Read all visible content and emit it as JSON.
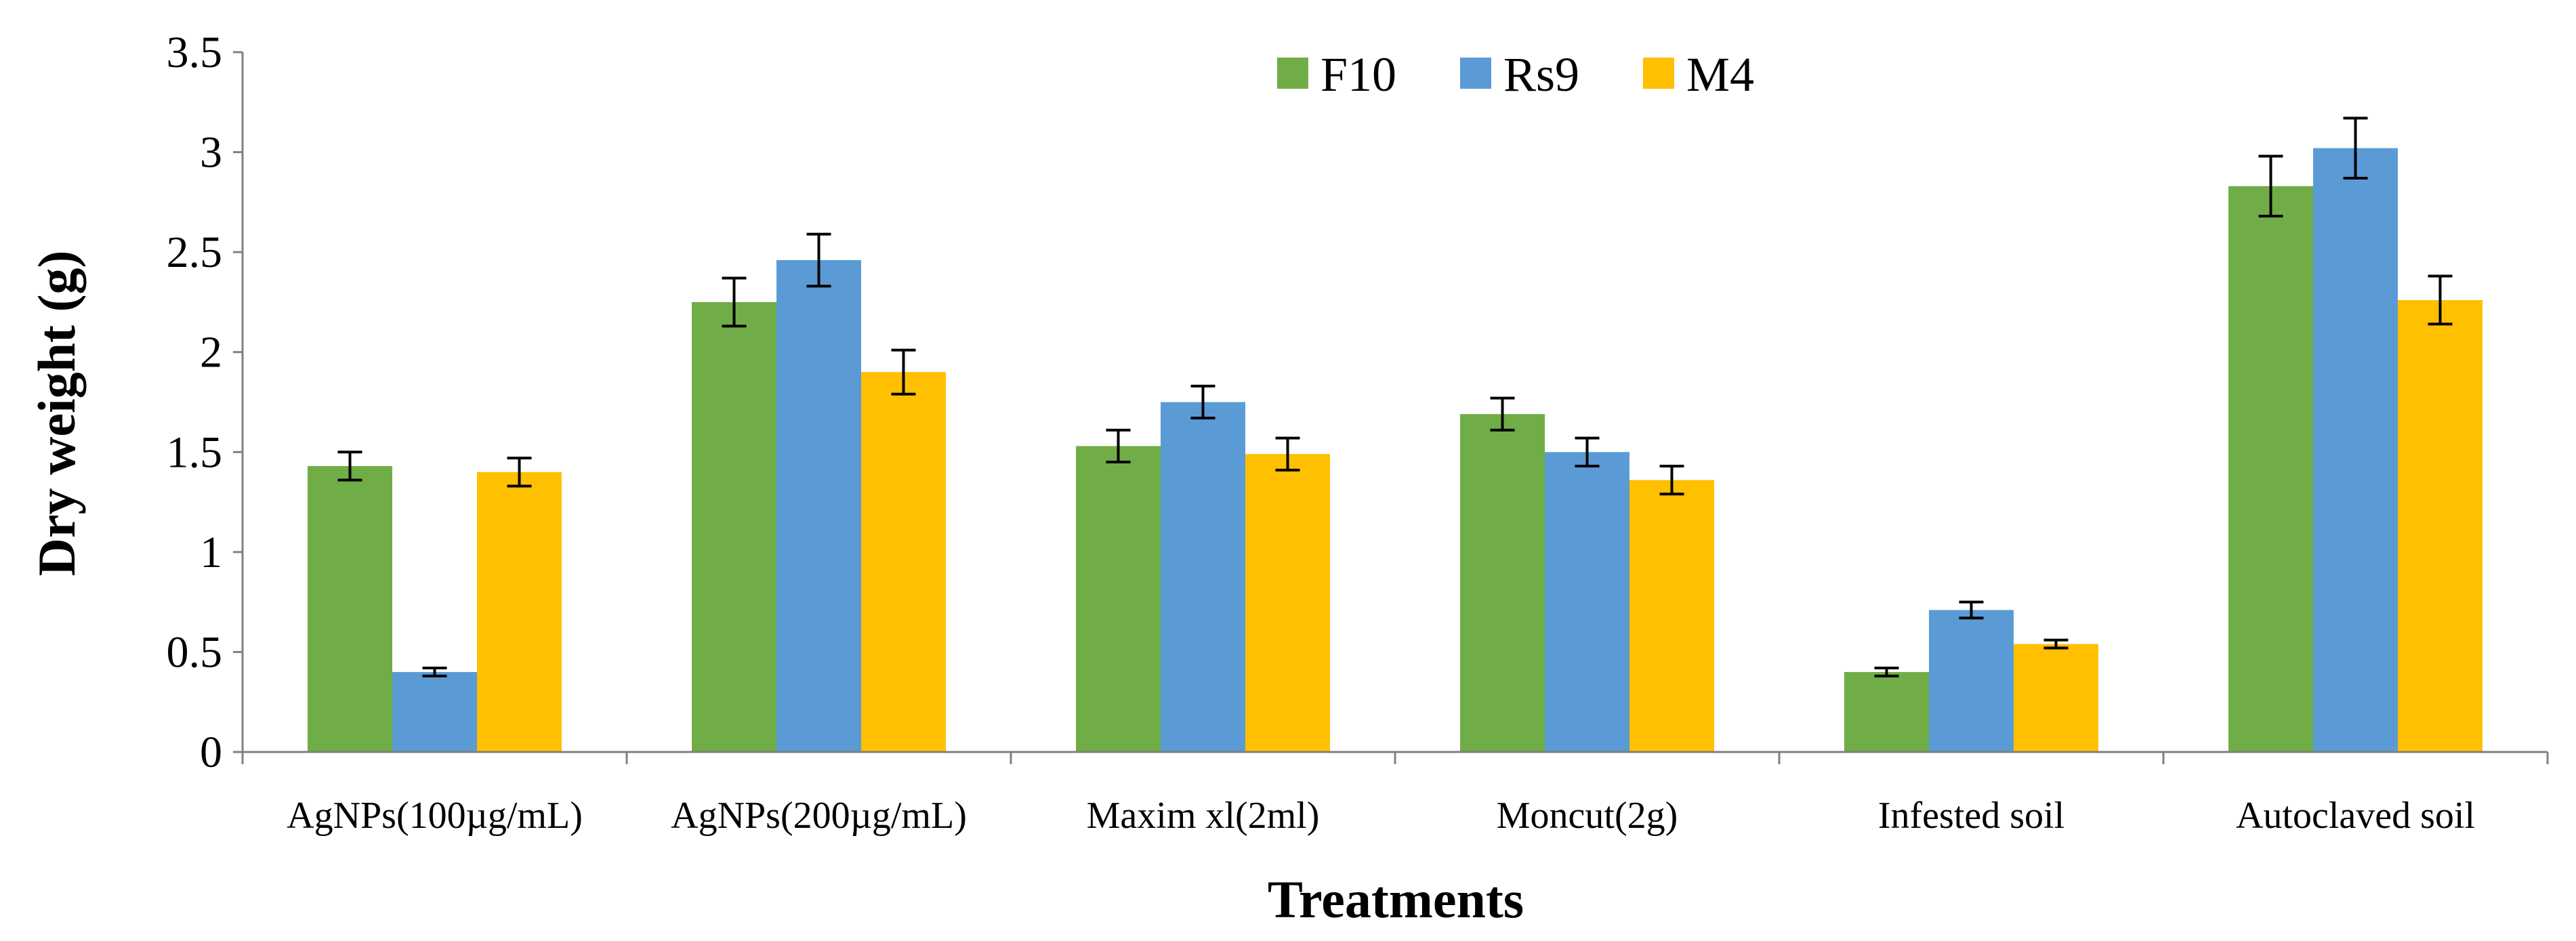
{
  "chart_data": {
    "type": "bar",
    "title": "",
    "xlabel": "Treatments",
    "ylabel": "Dry weight (g)",
    "ylim": [
      0,
      3.5
    ],
    "ytick_step": 0.5,
    "ytick_labels": [
      "0",
      "0.5",
      "1",
      "1.5",
      "2",
      "2.5",
      "3",
      "3.5"
    ],
    "grid": false,
    "legend_position": "top",
    "categories": [
      "AgNPs(100µg/mL)",
      "AgNPs(200µg/mL)",
      "Maxim xl(2ml)",
      "Moncut(2g)",
      "Infested soil",
      "Autoclaved soil"
    ],
    "series": [
      {
        "name": "F10",
        "color": "#70ad47",
        "values": [
          1.43,
          2.25,
          1.53,
          1.69,
          0.4,
          2.83
        ],
        "errors": [
          0.07,
          0.12,
          0.08,
          0.08,
          0.02,
          0.15
        ]
      },
      {
        "name": "Rs9",
        "color": "#5b9bd5",
        "values": [
          0.4,
          2.46,
          1.75,
          1.5,
          0.71,
          3.02
        ],
        "errors": [
          0.02,
          0.13,
          0.08,
          0.07,
          0.04,
          0.15
        ]
      },
      {
        "name": "M4",
        "color": "#ffc000",
        "values": [
          1.4,
          1.9,
          1.49,
          1.36,
          0.54,
          2.26
        ],
        "errors": [
          0.07,
          0.11,
          0.08,
          0.07,
          0.02,
          0.12
        ]
      }
    ]
  }
}
